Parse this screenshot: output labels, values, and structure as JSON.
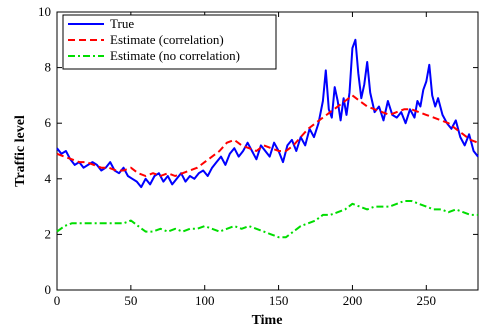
{
  "chart_data": {
    "type": "line",
    "title": "",
    "xlabel": "Time",
    "ylabel": "Traffic level",
    "xlim": [
      0,
      285
    ],
    "ylim": [
      0,
      10
    ],
    "xticks": [
      0,
      50,
      100,
      150,
      200,
      250
    ],
    "yticks": [
      0,
      2,
      4,
      6,
      8,
      10
    ],
    "xtick_labels": [
      "0",
      "50",
      "100",
      "150",
      "200",
      "250"
    ],
    "ytick_labels": [
      "0",
      "2",
      "4",
      "6",
      "8",
      "10"
    ],
    "grid": false,
    "legend_position": "top-left",
    "series": [
      {
        "name": "True",
        "color": "#0000ff",
        "style": "solid",
        "x": [
          0,
          3,
          6,
          9,
          12,
          15,
          18,
          21,
          24,
          27,
          30,
          33,
          36,
          39,
          42,
          45,
          48,
          51,
          54,
          57,
          60,
          63,
          66,
          69,
          72,
          75,
          78,
          81,
          84,
          87,
          90,
          93,
          96,
          99,
          102,
          105,
          108,
          111,
          114,
          117,
          120,
          123,
          126,
          129,
          132,
          135,
          138,
          141,
          144,
          147,
          150,
          153,
          156,
          159,
          162,
          165,
          168,
          171,
          174,
          177,
          180,
          182,
          184,
          186,
          188,
          190,
          192,
          194,
          196,
          198,
          200,
          202,
          204,
          206,
          208,
          210,
          212,
          215,
          218,
          221,
          224,
          227,
          230,
          233,
          236,
          239,
          242,
          244,
          246,
          248,
          250,
          252,
          254,
          256,
          258,
          261,
          264,
          267,
          270,
          273,
          276,
          279,
          282,
          285
        ],
        "y": [
          5.1,
          4.9,
          5.0,
          4.7,
          4.5,
          4.6,
          4.4,
          4.5,
          4.6,
          4.5,
          4.3,
          4.4,
          4.6,
          4.3,
          4.2,
          4.4,
          4.1,
          4.0,
          3.9,
          3.7,
          4.0,
          3.8,
          4.1,
          4.2,
          3.9,
          4.1,
          3.8,
          4.0,
          4.2,
          3.9,
          4.1,
          4.0,
          4.2,
          4.3,
          4.1,
          4.4,
          4.6,
          4.8,
          4.5,
          4.9,
          5.1,
          4.8,
          5.0,
          5.3,
          5.0,
          4.7,
          5.2,
          5.0,
          4.8,
          5.3,
          5.0,
          4.6,
          5.2,
          5.4,
          5.0,
          5.5,
          5.2,
          5.8,
          5.5,
          6.0,
          6.8,
          7.9,
          6.5,
          6.2,
          7.3,
          6.8,
          6.1,
          6.9,
          6.3,
          7.1,
          8.7,
          9.0,
          7.8,
          6.9,
          7.4,
          8.2,
          7.1,
          6.4,
          6.6,
          6.1,
          6.8,
          6.3,
          6.2,
          6.4,
          6.0,
          6.5,
          6.2,
          6.8,
          6.6,
          7.2,
          7.5,
          8.1,
          7.0,
          6.6,
          6.9,
          6.3,
          6.0,
          5.8,
          6.1,
          5.5,
          5.2,
          5.6,
          5.0,
          4.8
        ]
      },
      {
        "name": "Estimate (correlation)",
        "color": "#ff0000",
        "style": "dashed",
        "x": [
          0,
          5,
          10,
          15,
          20,
          25,
          30,
          35,
          40,
          45,
          50,
          55,
          60,
          65,
          70,
          75,
          80,
          85,
          90,
          95,
          100,
          105,
          110,
          115,
          120,
          125,
          130,
          135,
          140,
          145,
          150,
          155,
          160,
          165,
          170,
          175,
          180,
          185,
          190,
          195,
          200,
          205,
          210,
          215,
          220,
          225,
          230,
          235,
          240,
          245,
          250,
          255,
          260,
          265,
          270,
          275,
          280,
          285
        ],
        "y": [
          4.9,
          4.8,
          4.7,
          4.6,
          4.6,
          4.5,
          4.4,
          4.4,
          4.3,
          4.3,
          4.4,
          4.2,
          4.1,
          4.2,
          4.1,
          4.2,
          4.1,
          4.2,
          4.3,
          4.4,
          4.6,
          4.8,
          5.0,
          5.3,
          5.4,
          5.2,
          5.1,
          5.0,
          5.2,
          5.1,
          5.0,
          5.0,
          5.2,
          5.5,
          5.8,
          6.0,
          6.2,
          6.4,
          6.6,
          6.8,
          7.0,
          6.8,
          6.6,
          6.5,
          6.4,
          6.3,
          6.4,
          6.5,
          6.5,
          6.4,
          6.3,
          6.2,
          6.1,
          6.0,
          5.8,
          5.6,
          5.4,
          5.3
        ]
      },
      {
        "name": "Estimate (no correlation)",
        "color": "#00dd00",
        "style": "dashdot",
        "x": [
          0,
          5,
          10,
          15,
          20,
          25,
          30,
          35,
          40,
          45,
          50,
          55,
          60,
          65,
          70,
          75,
          80,
          85,
          90,
          95,
          100,
          105,
          110,
          115,
          120,
          125,
          130,
          135,
          140,
          145,
          150,
          155,
          160,
          165,
          170,
          175,
          180,
          185,
          190,
          195,
          200,
          205,
          210,
          215,
          220,
          225,
          230,
          235,
          240,
          245,
          250,
          255,
          260,
          265,
          270,
          275,
          280,
          285
        ],
        "y": [
          2.1,
          2.3,
          2.4,
          2.4,
          2.4,
          2.4,
          2.4,
          2.4,
          2.4,
          2.4,
          2.5,
          2.3,
          2.1,
          2.1,
          2.2,
          2.1,
          2.2,
          2.1,
          2.2,
          2.2,
          2.3,
          2.2,
          2.1,
          2.2,
          2.3,
          2.2,
          2.3,
          2.2,
          2.1,
          2.0,
          1.9,
          1.9,
          2.1,
          2.3,
          2.4,
          2.5,
          2.7,
          2.7,
          2.8,
          2.9,
          3.1,
          3.0,
          2.9,
          3.0,
          3.0,
          3.0,
          3.1,
          3.2,
          3.2,
          3.1,
          3.0,
          2.9,
          2.9,
          2.8,
          2.9,
          2.8,
          2.7,
          2.7
        ]
      }
    ]
  }
}
